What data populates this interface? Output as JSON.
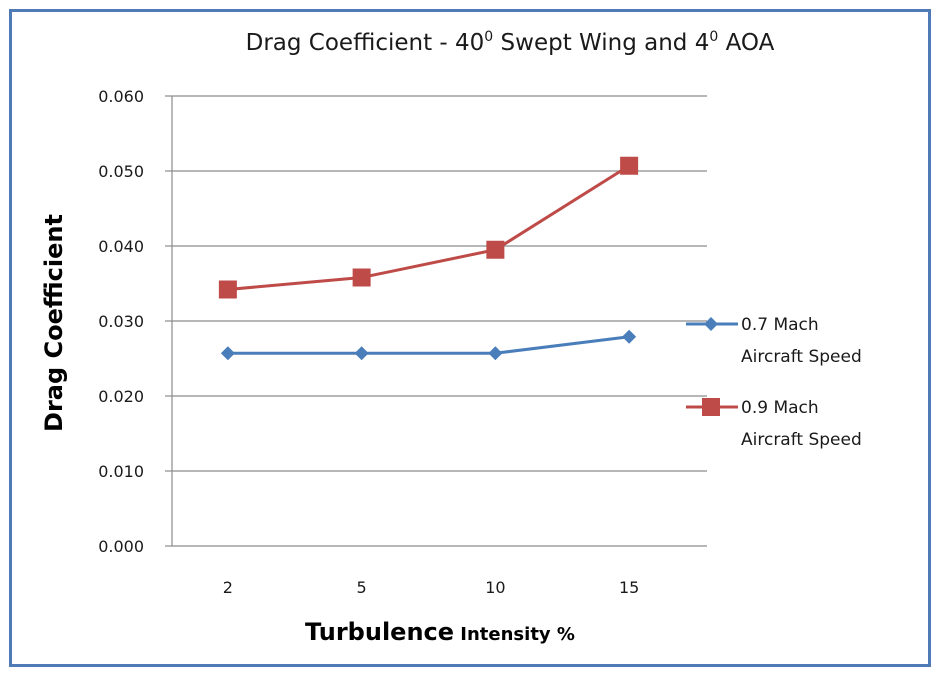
{
  "colors": {
    "frame": "#4f7ab5",
    "series1": "#4a7ebb",
    "series2": "#be4b48",
    "grid": "#8c8c8c"
  },
  "chart_data": {
    "type": "line",
    "title": {
      "part1": "Drag Coefficient - 40",
      "sup1": "0",
      "part2": " Swept Wing and 4",
      "sup2": "0",
      "part3": " AOA"
    },
    "xlabel": {
      "main": "Turbulence",
      "small": " Intensity %"
    },
    "ylabel": "Drag Coefficient",
    "categories": [
      "2",
      "5",
      "10",
      "15"
    ],
    "ylim": [
      0,
      0.06
    ],
    "yticks": [
      "0.000",
      "0.010",
      "0.020",
      "0.030",
      "0.040",
      "0.050",
      "0.060"
    ],
    "grid": true,
    "legend_position": "right",
    "series": [
      {
        "name_line1": "0.7 Mach",
        "name_line2": "Aircraft Speed",
        "marker": "diamond",
        "values": [
          0.0257,
          0.0257,
          0.0257,
          0.0279
        ]
      },
      {
        "name_line1": "0.9 Mach",
        "name_line2": "Aircraft Speed",
        "marker": "square",
        "values": [
          0.0342,
          0.0358,
          0.0395,
          0.0507
        ]
      }
    ]
  }
}
